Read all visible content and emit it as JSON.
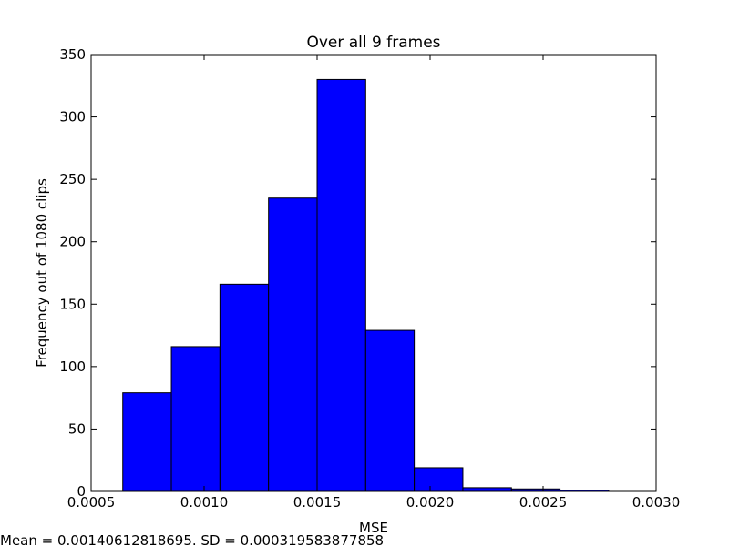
{
  "chart_data": {
    "type": "bar",
    "title": "Over all 9 frames",
    "xlabel": "MSE",
    "ylabel": "Frequency out of 1080 clips",
    "footnote": "Mean = 0.00140612818695. SD = 0.000319583877858",
    "xlim": [
      0.0005,
      0.003
    ],
    "ylim": [
      0,
      350
    ],
    "xticks": [
      0.0005,
      0.001,
      0.0015,
      0.002,
      0.0025,
      0.003
    ],
    "xtick_labels": [
      "0.0005",
      "0.0010",
      "0.0015",
      "0.0020",
      "0.0025",
      "0.0030"
    ],
    "yticks": [
      0,
      50,
      100,
      150,
      200,
      250,
      300,
      350
    ],
    "ytick_labels": [
      "0",
      "50",
      "100",
      "150",
      "200",
      "250",
      "300",
      "350"
    ],
    "bar_color": "#0000ff",
    "grid": false,
    "bins": [
      {
        "x0": 0.00064,
        "x1": 0.000855,
        "value": 79
      },
      {
        "x0": 0.000855,
        "x1": 0.00107,
        "value": 116
      },
      {
        "x0": 0.00107,
        "x1": 0.001285,
        "value": 166
      },
      {
        "x0": 0.001285,
        "x1": 0.0015,
        "value": 235
      },
      {
        "x0": 0.0015,
        "x1": 0.001715,
        "value": 330
      },
      {
        "x0": 0.001715,
        "x1": 0.00193,
        "value": 129
      },
      {
        "x0": 0.00193,
        "x1": 0.002145,
        "value": 19
      },
      {
        "x0": 0.002145,
        "x1": 0.00236,
        "value": 3
      },
      {
        "x0": 0.00236,
        "x1": 0.002575,
        "value": 2
      },
      {
        "x0": 0.002575,
        "x1": 0.00279,
        "value": 1
      }
    ]
  }
}
